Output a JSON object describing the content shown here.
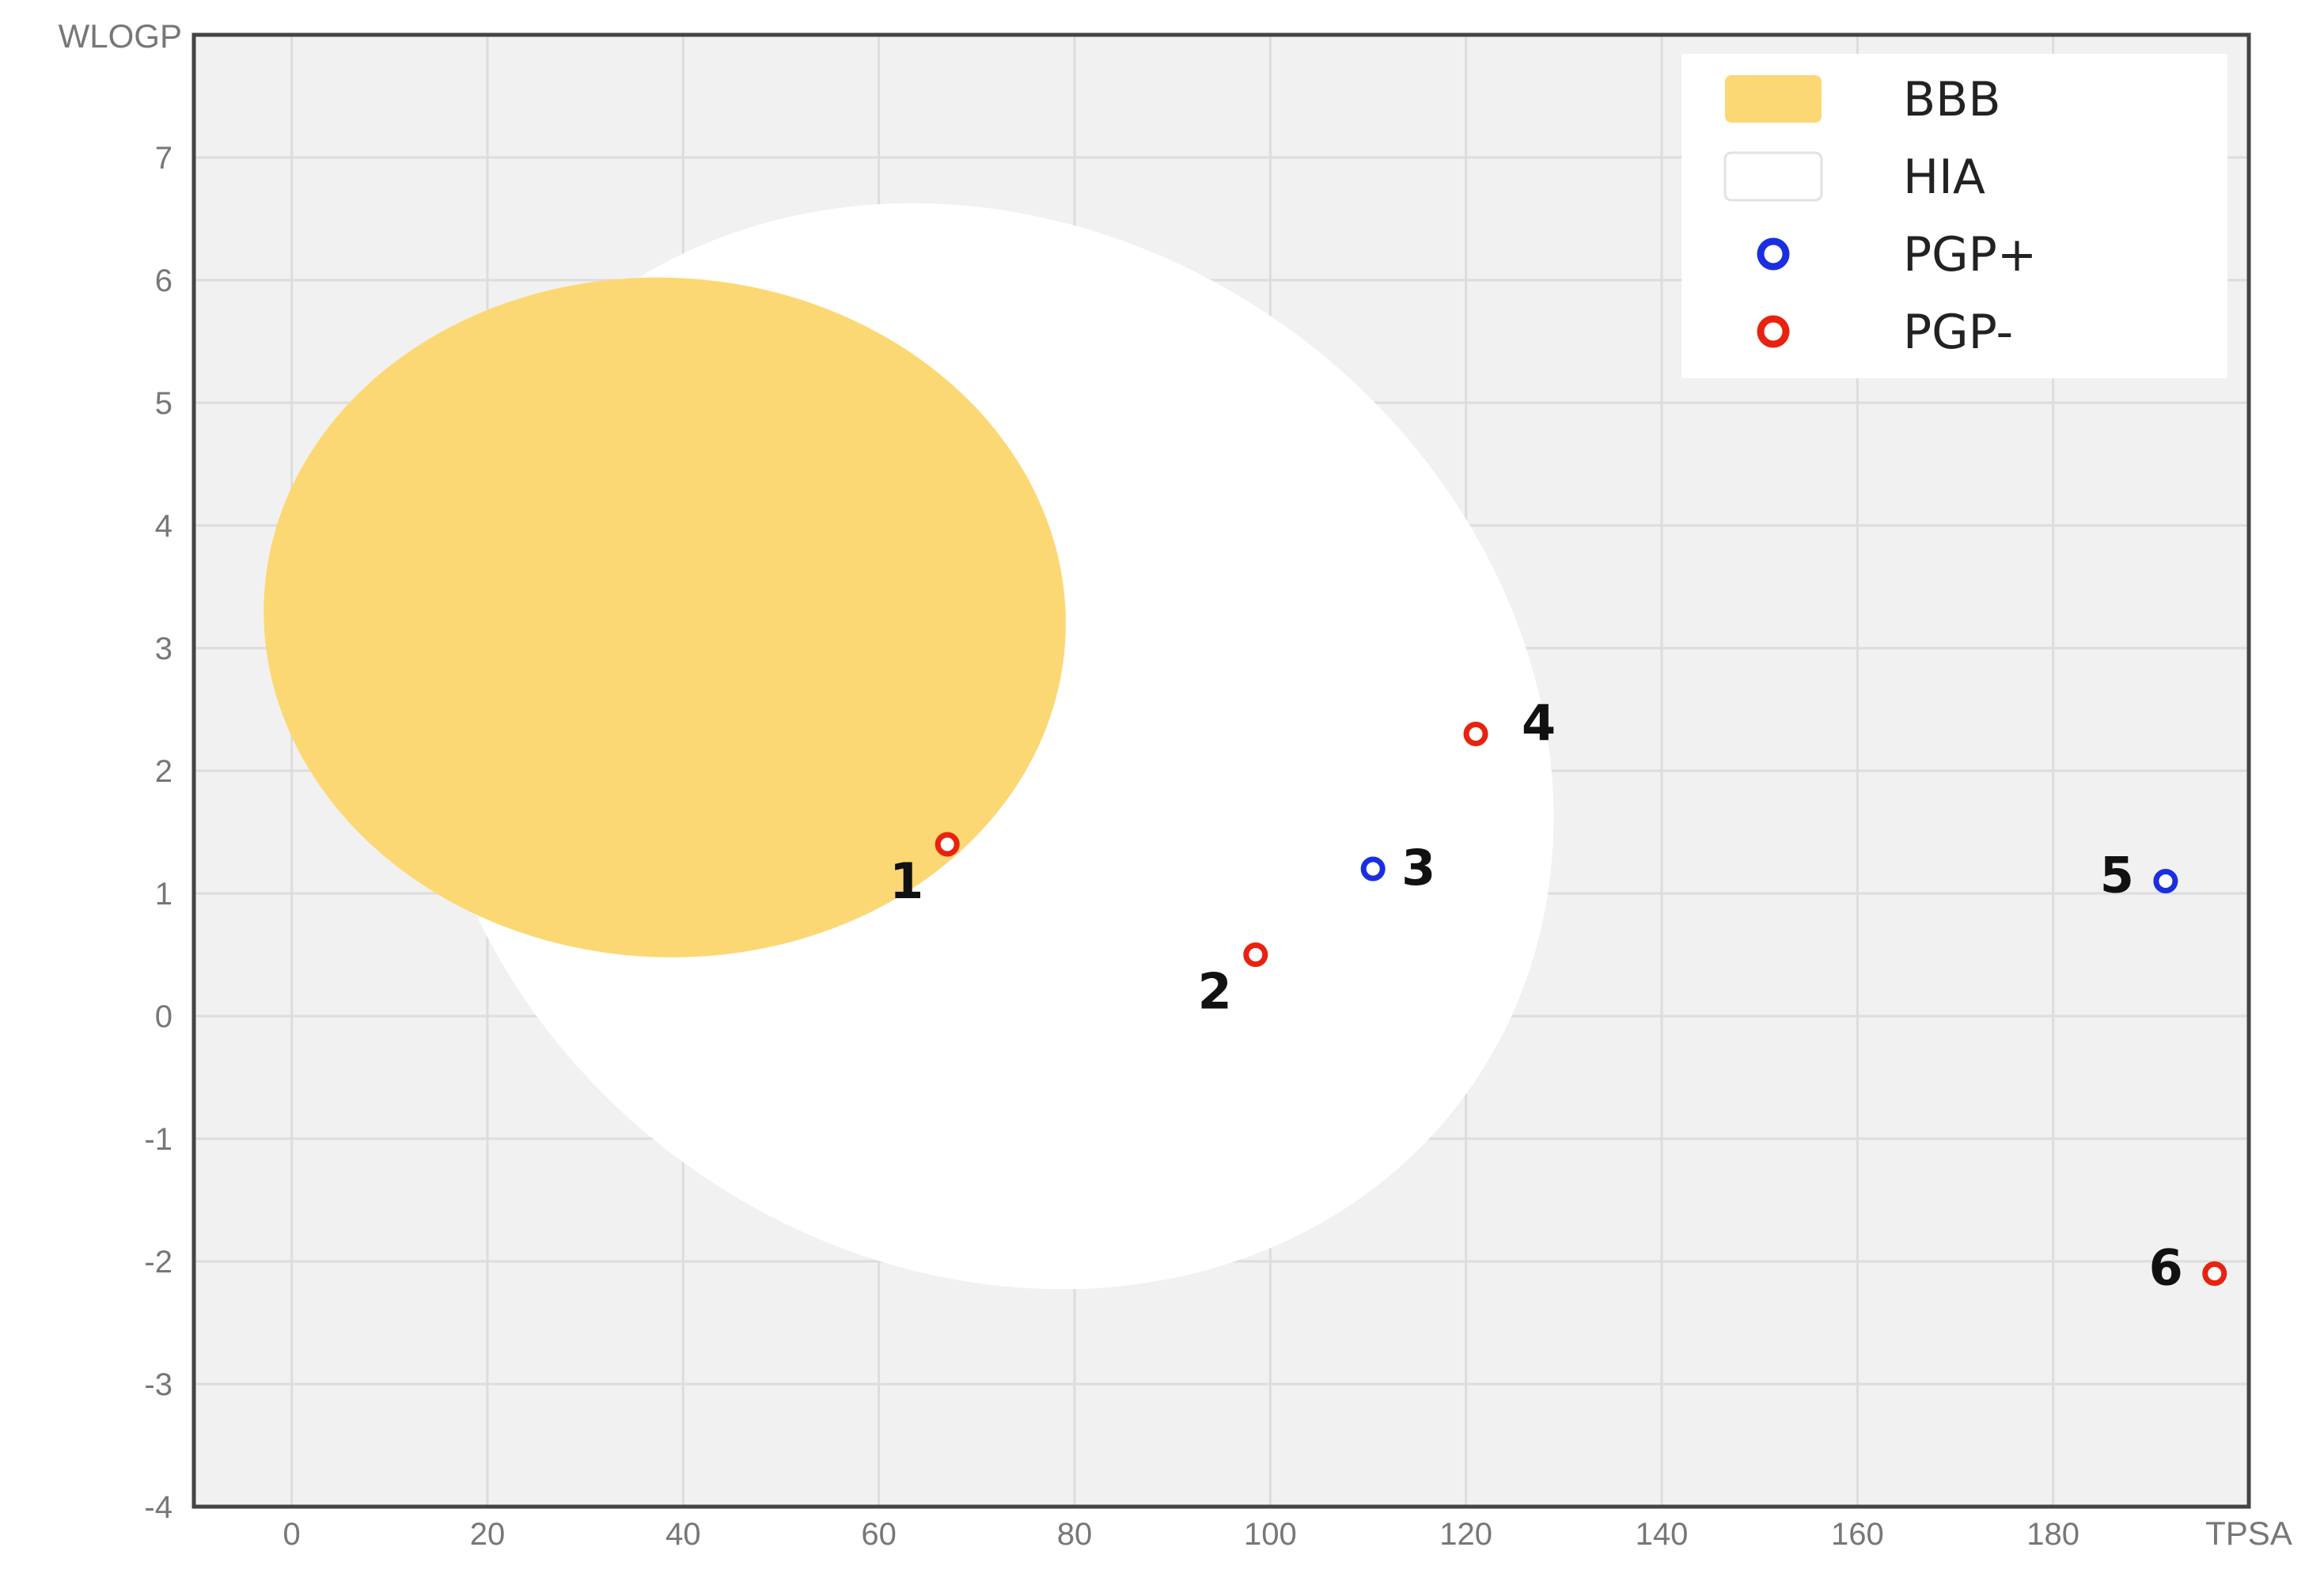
{
  "chart_data": {
    "type": "scatter",
    "xlabel": "TPSA",
    "ylabel": "WLOGP",
    "xlim": [
      -10,
      200
    ],
    "ylim": [
      -4,
      8
    ],
    "x_ticks": [
      0,
      20,
      40,
      60,
      80,
      100,
      120,
      140,
      160,
      180
    ],
    "y_ticks": [
      -4,
      -3,
      -2,
      -1,
      0,
      1,
      2,
      3,
      4,
      5,
      6,
      7
    ],
    "grid": true,
    "legend_position": "top-right",
    "legend": [
      {
        "label": "BBB",
        "kind": "area",
        "color": "#fcd874"
      },
      {
        "label": "HIA",
        "kind": "area",
        "color": "#ffffff"
      },
      {
        "label": "PGP+",
        "kind": "marker",
        "color": "#1a2fe0"
      },
      {
        "label": "PGP-",
        "kind": "marker",
        "color": "#e8220f"
      }
    ],
    "regions": [
      {
        "name": "HIA",
        "color": "#ffffff",
        "center": [
          71.05,
          2.2
        ],
        "semi_axes": [
          60.5,
          4.2
        ],
        "rotation_deg": 36
      },
      {
        "name": "BBB",
        "color": "#fcd874",
        "center": [
          38.12,
          3.25
        ],
        "semi_axes": [
          41.0,
          2.77
        ],
        "rotation_deg": 3
      }
    ],
    "series": [
      {
        "name": "PGP+",
        "color": "#1a2fe0",
        "points": [
          {
            "label": "3",
            "x": 110.5,
            "y": 1.2
          },
          {
            "label": "5",
            "x": 191.5,
            "y": 1.1
          }
        ]
      },
      {
        "name": "PGP-",
        "color": "#e8220f",
        "points": [
          {
            "label": "1",
            "x": 67.0,
            "y": 1.4
          },
          {
            "label": "2",
            "x": 98.5,
            "y": 0.5
          },
          {
            "label": "4",
            "x": 121.0,
            "y": 2.3
          },
          {
            "label": "6",
            "x": 196.5,
            "y": -2.1
          }
        ]
      }
    ]
  }
}
